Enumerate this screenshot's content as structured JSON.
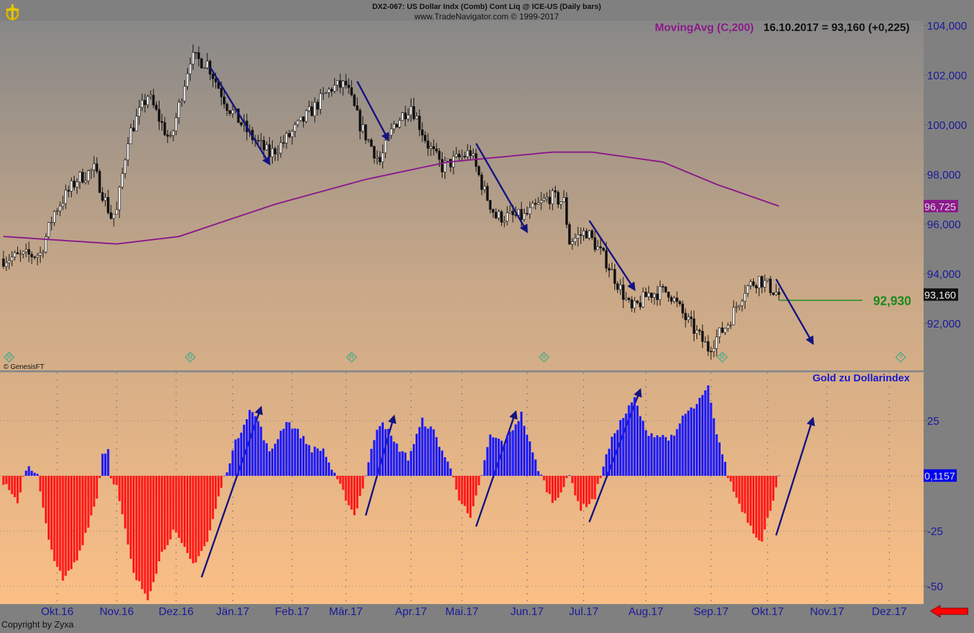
{
  "header": {
    "title": "DX2-067:  US Dollar Indx (Comb) Cont Liq @ ICE-US  (Daily bars)",
    "subtitle": "www.TradeNavigator.com © 1999-2017"
  },
  "legend": {
    "indicator": "MovingAvg (C,200)",
    "value_text": "16.10.2017 = 93,160 (+0,225)"
  },
  "watermark": "© GenesisFT",
  "copyright": "Copyright by Zyxa",
  "colors": {
    "ma": "#8b1a8b",
    "pos": "#1a1aff",
    "neg": "#ff1a1a",
    "arrow": "#141480",
    "level": "#1a8a1a"
  },
  "chart_data": [
    {
      "type": "candlestick",
      "title": "US Dollar Index (Daily bars)",
      "ylim": [
        90.3,
        104.2
      ],
      "y_ticks": [
        {
          "v": 104,
          "label": "104,000"
        },
        {
          "v": 102,
          "label": "102,000"
        },
        {
          "v": 100,
          "label": "100,000"
        },
        {
          "v": 98,
          "label": "98,000"
        },
        {
          "v": 96,
          "label": "96,000"
        },
        {
          "v": 94,
          "label": "94,000"
        },
        {
          "v": 92,
          "label": "92,000"
        }
      ],
      "bars_count": 275,
      "close_keypoints": [
        [
          0,
          94.6
        ],
        [
          13,
          94.8
        ],
        [
          18,
          96.5
        ],
        [
          26,
          97.8
        ],
        [
          32,
          98.2
        ],
        [
          38,
          96.3
        ],
        [
          40,
          96.5
        ],
        [
          44,
          99.5
        ],
        [
          51,
          101.2
        ],
        [
          59,
          99.3
        ],
        [
          66,
          102.7
        ],
        [
          72,
          102.5
        ],
        [
          79,
          100.8
        ],
        [
          87,
          99.6
        ],
        [
          94,
          98.8
        ],
        [
          99,
          99.3
        ],
        [
          106,
          100.2
        ],
        [
          116,
          101.5
        ],
        [
          121,
          101.6
        ],
        [
          126,
          100
        ],
        [
          133,
          98.5
        ],
        [
          138,
          100
        ],
        [
          144,
          100.8
        ],
        [
          150,
          99.2
        ],
        [
          155,
          98.3
        ],
        [
          165,
          98.9
        ],
        [
          170,
          97.3
        ],
        [
          174,
          96.3
        ],
        [
          184,
          96.3
        ],
        [
          193,
          97.1
        ],
        [
          198,
          96.9
        ],
        [
          200,
          95.3
        ],
        [
          206,
          95.7
        ],
        [
          213,
          94.5
        ],
        [
          222,
          92.5
        ],
        [
          228,
          93.2
        ],
        [
          235,
          93.3
        ],
        [
          241,
          92.2
        ],
        [
          249,
          91
        ],
        [
          256,
          92
        ],
        [
          262,
          93.4
        ],
        [
          267,
          93.8
        ],
        [
          274,
          93.16
        ]
      ],
      "moving_average": {
        "name": "MovingAvg (C,200)",
        "last_label": "96,725",
        "keypoints": [
          [
            0,
            95.5
          ],
          [
            40,
            95.2
          ],
          [
            62,
            95.5
          ],
          [
            96,
            96.8
          ],
          [
            128,
            97.8
          ],
          [
            157,
            98.5
          ],
          [
            194,
            98.9
          ],
          [
            208,
            98.9
          ],
          [
            233,
            98.5
          ],
          [
            252,
            97.6
          ],
          [
            274,
            96.725
          ]
        ]
      },
      "last_price_label": "93,160",
      "level": {
        "value": 92.93,
        "label": "92,930",
        "from": 274,
        "to": 304
      },
      "arrows": [
        [
          73,
          102.33,
          94,
          98.42
        ],
        [
          125,
          101.75,
          136,
          99.39
        ],
        [
          167,
          99.25,
          185,
          95.69
        ],
        [
          207,
          96.14,
          223,
          93.36
        ],
        [
          273,
          93.78,
          286,
          91.19
        ]
      ],
      "event_markers": [
        {
          "bar": 2,
          "label": "R"
        },
        {
          "bar": 66,
          "label": "R"
        },
        {
          "bar": 123,
          "label": "R"
        },
        {
          "bar": 191,
          "label": "R"
        },
        {
          "bar": 254,
          "label": "R"
        },
        {
          "bar": 317,
          "label": "?"
        }
      ]
    },
    {
      "type": "bar",
      "title": "Gold zu Dollarindex",
      "ylim": [
        -55,
        45
      ],
      "y_ticks": [
        {
          "v": 25,
          "label": "25"
        },
        {
          "v": -25,
          "label": "-25"
        },
        {
          "v": -50,
          "label": "-50"
        }
      ],
      "last_label": "0,1157",
      "keypoints": [
        [
          0,
          -3
        ],
        [
          5,
          -13
        ],
        [
          7,
          0
        ],
        [
          9,
          5
        ],
        [
          12,
          0
        ],
        [
          16,
          -30
        ],
        [
          21,
          -48
        ],
        [
          26,
          -38
        ],
        [
          33,
          -10
        ],
        [
          35,
          10
        ],
        [
          37,
          12
        ],
        [
          38,
          0
        ],
        [
          40,
          -5
        ],
        [
          46,
          -45
        ],
        [
          51,
          -55
        ],
        [
          56,
          -35
        ],
        [
          60,
          -25
        ],
        [
          67,
          -40
        ],
        [
          72,
          -30
        ],
        [
          77,
          -5
        ],
        [
          82,
          15
        ],
        [
          87,
          30
        ],
        [
          90,
          25
        ],
        [
          94,
          10
        ],
        [
          100,
          25
        ],
        [
          104,
          20
        ],
        [
          109,
          12
        ],
        [
          113,
          12
        ],
        [
          117,
          0
        ],
        [
          121,
          -10
        ],
        [
          124,
          -18
        ],
        [
          127,
          -5
        ],
        [
          132,
          22
        ],
        [
          134,
          25
        ],
        [
          138,
          15
        ],
        [
          143,
          8
        ],
        [
          148,
          25
        ],
        [
          152,
          20
        ],
        [
          159,
          0
        ],
        [
          161,
          -10
        ],
        [
          165,
          -20
        ],
        [
          168,
          -5
        ],
        [
          172,
          18
        ],
        [
          177,
          15
        ],
        [
          183,
          28
        ],
        [
          187,
          10
        ],
        [
          190,
          0
        ],
        [
          194,
          -12
        ],
        [
          198,
          -5
        ],
        [
          200,
          0
        ],
        [
          204,
          -15
        ],
        [
          209,
          -10
        ],
        [
          212,
          5
        ],
        [
          216,
          20
        ],
        [
          223,
          35
        ],
        [
          227,
          20
        ],
        [
          232,
          18
        ],
        [
          237,
          17
        ],
        [
          240,
          27
        ],
        [
          245,
          32
        ],
        [
          249,
          40
        ],
        [
          251,
          25
        ],
        [
          256,
          0
        ],
        [
          259,
          -10
        ],
        [
          265,
          -25
        ],
        [
          268,
          -30
        ],
        [
          274,
          0.1157
        ]
      ],
      "arrows": [
        [
          70,
          -46,
          91,
          31
        ],
        [
          128,
          -18,
          138,
          27
        ],
        [
          167,
          -23,
          181,
          29
        ],
        [
          207,
          -21,
          225,
          39
        ],
        [
          273,
          -27,
          286,
          26
        ]
      ]
    }
  ],
  "x_axis": {
    "months": [
      {
        "bar": 19,
        "label": "Okt.16"
      },
      {
        "bar": 40,
        "label": "Nov.16"
      },
      {
        "bar": 61,
        "label": "Dez.16"
      },
      {
        "bar": 81,
        "label": "Jän.17"
      },
      {
        "bar": 102,
        "label": "Feb.17"
      },
      {
        "bar": 121,
        "label": "Mär.17"
      },
      {
        "bar": 144,
        "label": "Apr.17"
      },
      {
        "bar": 162,
        "label": "Mai.17"
      },
      {
        "bar": 185,
        "label": "Jun.17"
      },
      {
        "bar": 205,
        "label": "Jul.17"
      },
      {
        "bar": 227,
        "label": "Aug.17"
      },
      {
        "bar": 250,
        "label": "Sep.17"
      },
      {
        "bar": 270,
        "label": "Okt.17"
      },
      {
        "bar": 291,
        "label": "Nov.17"
      },
      {
        "bar": 313,
        "label": "Dez.17"
      }
    ]
  }
}
